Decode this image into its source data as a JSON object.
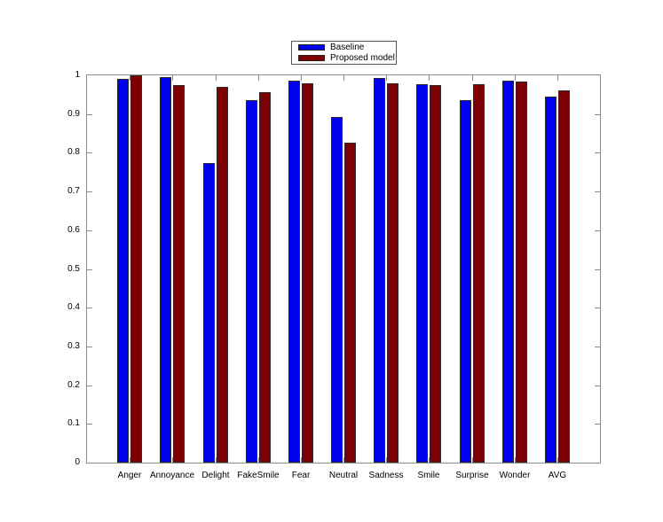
{
  "figure": {
    "background": "#ffffff",
    "axis_color": "#8c8c8c",
    "bar_edge_color": "#2b2b2b",
    "text_color": "#000000"
  },
  "chart_data": {
    "type": "bar",
    "title": "",
    "xlabel": "",
    "ylabel": "",
    "grid": false,
    "legend_position": "top-center",
    "categories": [
      "Anger",
      "Annoyance",
      "Delight",
      "FakeSmile",
      "Fear",
      "Neutral",
      "Sadness",
      "Smile",
      "Surprise",
      "Wonder",
      "AVG"
    ],
    "series": [
      {
        "name": "Baseline",
        "color": "#0000ee",
        "values": [
          0.99,
          0.995,
          0.773,
          0.937,
          0.986,
          0.893,
          0.992,
          0.976,
          0.935,
          0.986,
          0.945
        ]
      },
      {
        "name": "Proposed model",
        "color": "#7f0000",
        "values": [
          1.0,
          0.975,
          0.97,
          0.956,
          0.979,
          0.825,
          0.98,
          0.975,
          0.976,
          0.985,
          0.962
        ]
      }
    ],
    "ylim": [
      0,
      1
    ],
    "yticks": [
      0,
      0.1,
      0.2,
      0.3,
      0.4,
      0.5,
      0.6,
      0.7,
      0.8,
      0.9,
      1
    ],
    "ytick_labels": [
      "0",
      "0.1",
      "0.2",
      "0.3",
      "0.4",
      "0.5",
      "0.6",
      "0.7",
      "0.8",
      "0.9",
      "1"
    ]
  }
}
